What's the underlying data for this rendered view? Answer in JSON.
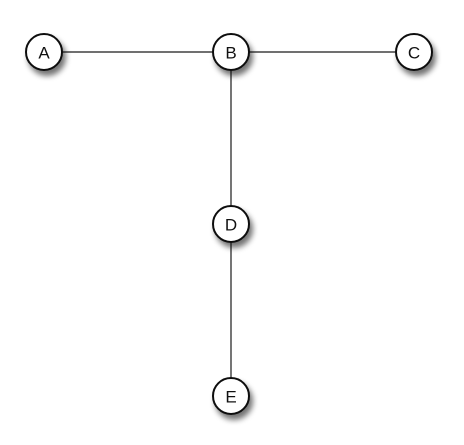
{
  "graph": {
    "nodes": [
      {
        "id": "A",
        "label": "A"
      },
      {
        "id": "B",
        "label": "B"
      },
      {
        "id": "C",
        "label": "C"
      },
      {
        "id": "D",
        "label": "D"
      },
      {
        "id": "E",
        "label": "E"
      }
    ],
    "edges": [
      {
        "from": "A",
        "to": "B"
      },
      {
        "from": "B",
        "to": "C"
      },
      {
        "from": "B",
        "to": "D"
      },
      {
        "from": "D",
        "to": "E"
      }
    ]
  }
}
